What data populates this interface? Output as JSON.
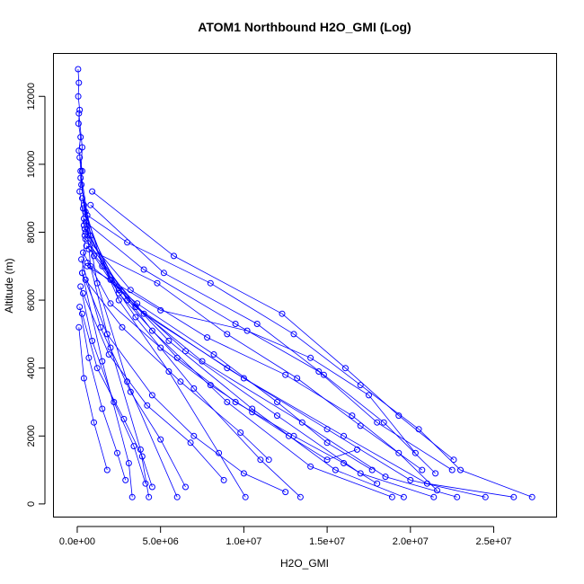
{
  "chart_data": {
    "type": "line",
    "title": "ATOM1 Northbound H2O_GMI (Log)",
    "xlabel": "H2O_GMI",
    "ylabel": "Altitude (m)",
    "xlim": [
      -1400000,
      28800000
    ],
    "ylim": [
      -400,
      13250
    ],
    "xticks": [
      0,
      5000000,
      10000000,
      15000000,
      20000000,
      25000000
    ],
    "xtick_labels": [
      "0.0e+00",
      "5.0e+06",
      "1.0e+07",
      "1.5e+07",
      "2.0e+07",
      "2.5e+07"
    ],
    "yticks": [
      0,
      2000,
      4000,
      6000,
      8000,
      10000,
      12000
    ],
    "ytick_labels": [
      "0",
      "2000",
      "4000",
      "6000",
      "8000",
      "10000",
      "12000"
    ],
    "color": "#0000ff",
    "marker": "open-circle",
    "grid": false,
    "series": [
      {
        "x": [
          50000,
          100000,
          60000,
          150000,
          80000,
          200000,
          100000,
          300000,
          150000,
          500000,
          300000,
          1500000,
          3100000,
          3300000
        ],
        "y": [
          12800,
          12400,
          12000,
          11600,
          11200,
          10800,
          10400,
          9800,
          9200,
          8000,
          6800,
          4200,
          1200,
          200
        ]
      },
      {
        "x": [
          100000,
          300000,
          200000,
          500000,
          800000,
          2000000,
          3800000,
          4300000
        ],
        "y": [
          11500,
          10500,
          9600,
          8600,
          7000,
          4600,
          1600,
          200
        ]
      },
      {
        "x": [
          150000,
          400000,
          1200000,
          3000000,
          6000000
        ],
        "y": [
          10200,
          8800,
          6500,
          3600,
          200
        ]
      },
      {
        "x": [
          200000,
          800000,
          2500000,
          5500000,
          8500000,
          10100000
        ],
        "y": [
          9800,
          7900,
          6000,
          3900,
          1500,
          200
        ]
      },
      {
        "x": [
          250000,
          1000000,
          3500000,
          7000000,
          11000000,
          13400000
        ],
        "y": [
          9400,
          7300,
          5500,
          3400,
          1300,
          200
        ]
      },
      {
        "x": [
          300000,
          1500000,
          4500000,
          9000000,
          14000000,
          18900000
        ],
        "y": [
          9000,
          7000,
          5100,
          3000,
          1100,
          200
        ]
      },
      {
        "x": [
          350000,
          2000000,
          5500000,
          10500000,
          15500000,
          19600000
        ],
        "y": [
          8700,
          6600,
          4800,
          2800,
          1000,
          200
        ]
      },
      {
        "x": [
          400000,
          2500000,
          6500000,
          12000000,
          17000000,
          21400000
        ],
        "y": [
          8400,
          6300,
          4500,
          2600,
          900,
          200
        ]
      },
      {
        "x": [
          450000,
          3000000,
          7500000,
          13500000,
          18500000,
          22800000
        ],
        "y": [
          8100,
          6000,
          4200,
          2400,
          800,
          200
        ]
      },
      {
        "x": [
          500000,
          3500000,
          9000000,
          15000000,
          20000000,
          24500000
        ],
        "y": [
          7800,
          5800,
          4000,
          2200,
          700,
          200
        ]
      },
      {
        "x": [
          550000,
          4000000,
          10000000,
          16000000,
          21000000,
          26200000
        ],
        "y": [
          7600,
          5600,
          3700,
          2000,
          600,
          200
        ]
      },
      {
        "x": [
          600000,
          3000000,
          8000000,
          13000000,
          17000000,
          20500000,
          23000000,
          27300000
        ],
        "y": [
          8500,
          7700,
          6500,
          5000,
          3500,
          2200,
          1000,
          200
        ]
      },
      {
        "x": [
          300000,
          1800000,
          4500000,
          7000000,
          10000000,
          12500000
        ],
        "y": [
          6800,
          5000,
          3200,
          2000,
          900,
          350
        ]
      },
      {
        "x": [
          400000,
          2500000,
          6000000,
          9500000,
          13000000,
          16000000,
          18000000
        ],
        "y": [
          8200,
          6200,
          4300,
          3000,
          2000,
          1200,
          600
        ]
      },
      {
        "x": [
          250000,
          1400000,
          3200000,
          5000000,
          6500000
        ],
        "y": [
          7200,
          5200,
          3300,
          1900,
          500
        ]
      },
      {
        "x": [
          200000,
          900000,
          2200000,
          3400000,
          4100000
        ],
        "y": [
          6400,
          4800,
          3000,
          1700,
          600
        ]
      },
      {
        "x": [
          350000,
          2000000,
          5000000,
          8000000,
          10500000,
          12700000,
          15000000,
          16800000
        ],
        "y": [
          7400,
          5900,
          4600,
          3500,
          2700,
          2000,
          1300,
          1600
        ]
      },
      {
        "x": [
          450000,
          3200000,
          7800000,
          12500000,
          16500000,
          19300000,
          21600000
        ],
        "y": [
          7900,
          6300,
          4900,
          3800,
          2600,
          1500,
          400
        ]
      },
      {
        "x": [
          500000,
          4000000,
          9500000,
          14500000,
          18000000,
          22500000
        ],
        "y": [
          8300,
          6900,
          5300,
          3900,
          2400,
          1000
        ]
      },
      {
        "x": [
          600000,
          5000000,
          10200000,
          14000000,
          17500000,
          20300000
        ],
        "y": [
          7000,
          5700,
          5100,
          4300,
          3200,
          1500
        ]
      },
      {
        "x": [
          150000,
          700000,
          1500000,
          2400000,
          2900000
        ],
        "y": [
          5800,
          4300,
          2800,
          1500,
          700
        ]
      },
      {
        "x": [
          100000,
          400000,
          1000000,
          1800000
        ],
        "y": [
          5200,
          3700,
          2400,
          1000
        ]
      },
      {
        "x": [
          300000,
          1200000,
          2800000,
          3900000,
          4500000
        ],
        "y": [
          5600,
          4000,
          2500,
          1400,
          500
        ]
      },
      {
        "x": [
          350000,
          1900000,
          4200000,
          6800000,
          8800000
        ],
        "y": [
          6200,
          4400,
          2900,
          1800,
          700
        ]
      },
      {
        "x": [
          500000,
          2700000,
          6200000,
          9800000,
          11500000
        ],
        "y": [
          6600,
          5200,
          3600,
          2100,
          1300
        ]
      },
      {
        "x": [
          600000,
          3600000,
          8200000,
          12000000,
          15000000,
          17700000
        ],
        "y": [
          7100,
          5900,
          4400,
          3000,
          1800,
          1000
        ]
      },
      {
        "x": [
          700000,
          4800000,
          9000000,
          13200000,
          17000000,
          20700000
        ],
        "y": [
          7500,
          6500,
          5000,
          3700,
          2300,
          1000
        ]
      },
      {
        "x": [
          800000,
          5200000,
          10800000,
          14800000,
          18400000,
          21500000
        ],
        "y": [
          8800,
          6800,
          5300,
          3800,
          2400,
          900
        ]
      },
      {
        "x": [
          900000,
          5800000,
          12300000,
          16100000,
          19300000,
          22600000
        ],
        "y": [
          9200,
          7300,
          5600,
          4000,
          2600,
          1300
        ]
      }
    ]
  }
}
